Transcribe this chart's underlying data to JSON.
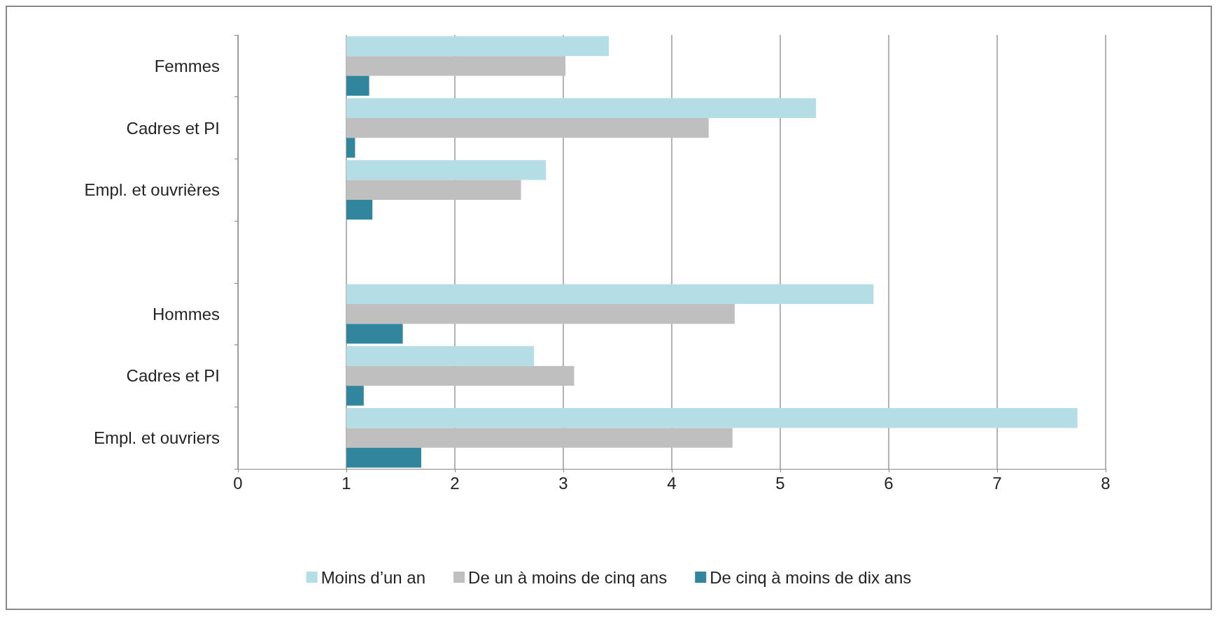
{
  "chart_data": {
    "type": "bar",
    "orientation": "horizontal",
    "categories": [
      "Femmes",
      "Cadres et PI",
      "Empl. et ouvrières",
      null,
      "Hommes",
      "Cadres et PI",
      "Empl. et ouvriers"
    ],
    "series": [
      {
        "name": "Moins d’un an",
        "color": "#b4dde6",
        "base": [
          1,
          1,
          1,
          null,
          1,
          1,
          1
        ],
        "values": [
          2.42,
          4.33,
          1.84,
          null,
          4.86,
          1.73,
          6.74
        ]
      },
      {
        "name": "De un à moins de cinq ans",
        "color": "#bfbfbf",
        "base": [
          1,
          1,
          1,
          null,
          1,
          1,
          1
        ],
        "values": [
          2.02,
          3.34,
          1.61,
          null,
          3.58,
          2.1,
          3.56
        ]
      },
      {
        "name": "De cinq à moins de dix ans",
        "color": "#31859c",
        "base": [
          1,
          1,
          1,
          null,
          1,
          1,
          1
        ],
        "values": [
          0.21,
          0.08,
          0.24,
          null,
          0.52,
          0.16,
          0.69
        ]
      }
    ],
    "xlim": [
      0,
      8
    ],
    "xticks": [
      0,
      1,
      2,
      3,
      4,
      5,
      6,
      7,
      8
    ],
    "grid": "x",
    "legend": "bottom"
  }
}
